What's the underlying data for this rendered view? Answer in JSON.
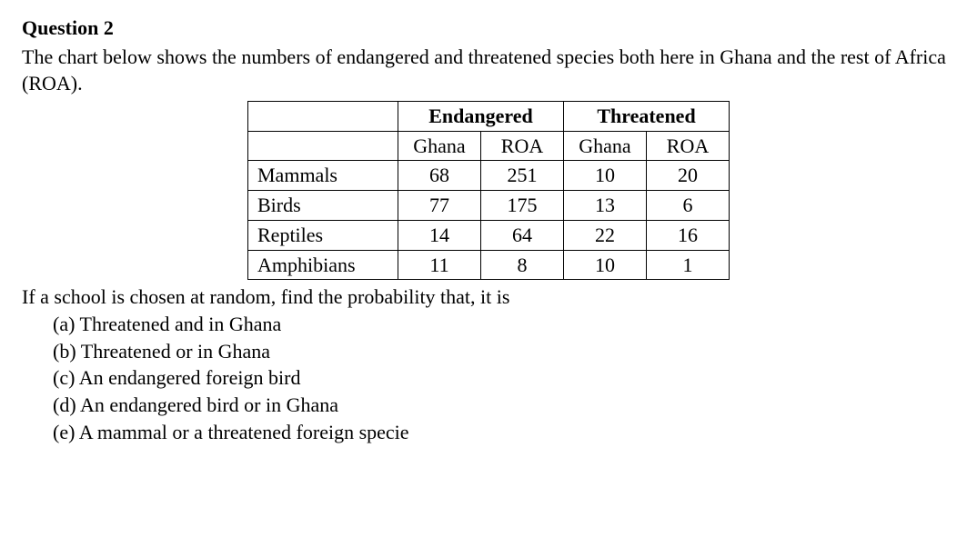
{
  "heading": "Question 2",
  "intro": "The chart below shows the numbers of endangered and threatened species both here in Ghana and the rest of Africa (ROA).",
  "table": {
    "group_headers": [
      "Endangered",
      "Threatened"
    ],
    "sub_headers": [
      "Ghana",
      "ROA",
      "Ghana",
      "ROA"
    ],
    "rows": [
      {
        "label": "Mammals",
        "values": [
          "68",
          "251",
          "10",
          "20"
        ]
      },
      {
        "label": "Birds",
        "values": [
          "77",
          "175",
          "13",
          "6"
        ]
      },
      {
        "label": "Reptiles",
        "values": [
          "14",
          "64",
          "22",
          "16"
        ]
      },
      {
        "label": "Amphibians",
        "values": [
          "11",
          "8",
          "10",
          "1"
        ]
      }
    ]
  },
  "prompt": "If a school is chosen at random, find the probability that, it is",
  "subs": [
    "(a) Threatened and in Ghana",
    "(b) Threatened or in Ghana",
    "(c) An endangered foreign bird",
    "(d) An endangered bird or in Ghana",
    "(e) A mammal or a threatened foreign specie"
  ],
  "styling": {
    "font_family": "Times New Roman",
    "font_size_pt": 16,
    "text_color": "#000000",
    "background_color": "#ffffff",
    "border_color": "#000000"
  }
}
